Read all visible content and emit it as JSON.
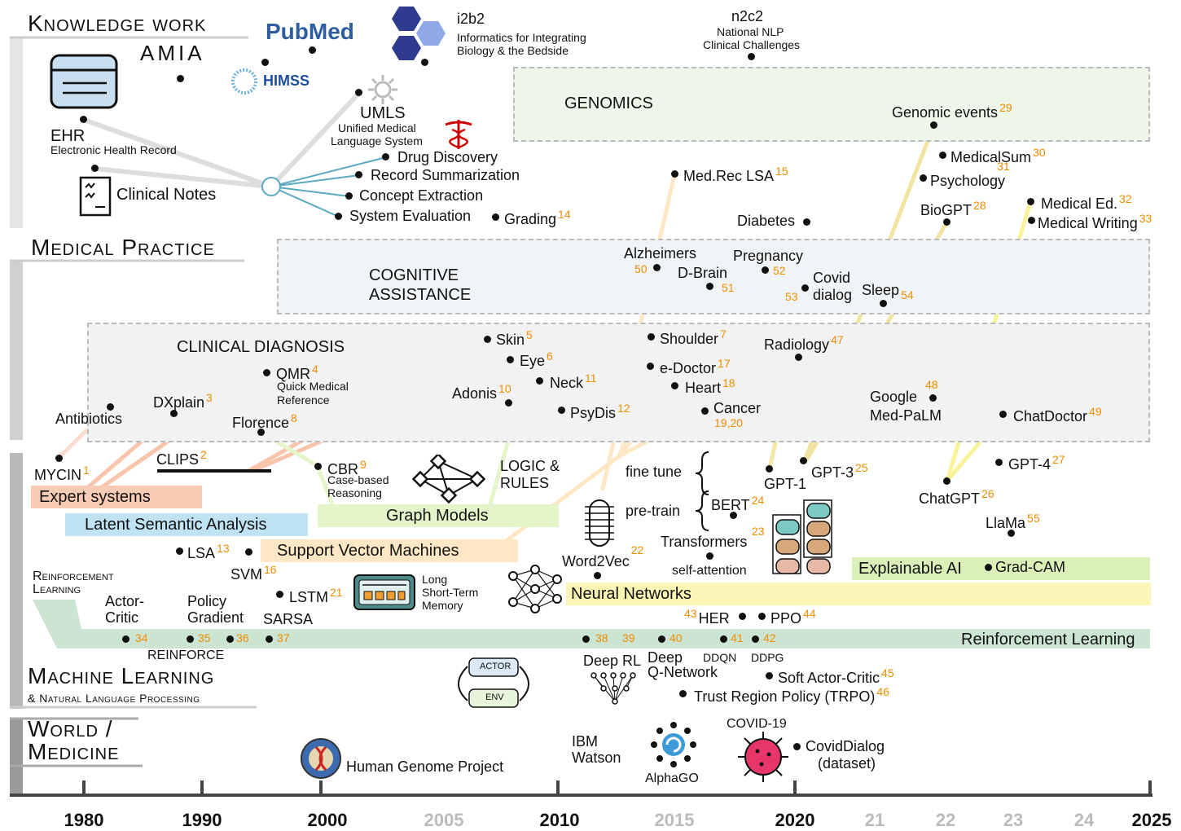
{
  "sections": {
    "knowledge": "Knowledge work",
    "medical": "Medical Practice",
    "ml_title": "Machine Learning",
    "ml_sub": "& Natural Language Processing",
    "world_1": "World /",
    "world_2": "Medicine"
  },
  "logos": {
    "pubmed": "PubMed",
    "amia": "AMIA",
    "himss": "HIMSS",
    "i2b2": "i2b2",
    "i2b2_desc_1": "Informatics for Integrating",
    "i2b2_desc_2": "Biology & the Bedside",
    "n2c2": "n2c2",
    "n2c2_desc_1": "National NLP",
    "n2c2_desc_2": "Clinical Challenges"
  },
  "knowledge": {
    "ehr": "EHR",
    "ehr_desc": "Electronic Health Record",
    "clinical_notes": "Clinical Notes",
    "umls": "UMLS",
    "umls_desc_1": "Unified Medical",
    "umls_desc_2": "Language System",
    "tasks": [
      "Drug Discovery",
      "Record Summarization",
      "Concept Extraction",
      "System Evaluation"
    ],
    "grading": "Grading",
    "grading_ref": "14",
    "genomics": "GENOMICS"
  },
  "medical": {
    "cognitive_1": "COGNITIVE",
    "cognitive_2": "ASSISTANCE",
    "clinical_diagnosis": "CLINICAL DIAGNOSIS"
  },
  "apps": {
    "medrec": "Med.Rec LSA",
    "medrec_ref": "15",
    "genomic_events": "Genomic events",
    "genomic_events_ref": "29",
    "medicalsum": "MedicalSum",
    "medicalsum_ref": "30",
    "psychology": "Psychology",
    "psychology_ref": "31",
    "biogpt": "BioGPT",
    "biogpt_ref": "28",
    "diabetes": "Diabetes",
    "medical_ed": "Medical Ed.",
    "medical_ed_ref": "32",
    "medical_writing": "Medical Writing",
    "medical_writing_ref": "33",
    "alzheimers": "Alzheimers",
    "alzheimers_ref": "50",
    "dbrain": "D-Brain",
    "dbrain_ref": "51",
    "pregnancy": "Pregnancy",
    "pregnancy_ref": "52",
    "covid_dialog_1": "Covid",
    "covid_dialog_2": "dialog",
    "covid_dialog_ref": "53",
    "sleep": "Sleep",
    "sleep_ref": "54",
    "skin": "Skin",
    "skin_ref": "5",
    "shoulder": "Shoulder",
    "shoulder_ref": "7",
    "eye": "Eye",
    "eye_ref": "6",
    "edoctor": "e-Doctor",
    "edoctor_ref": "17",
    "neck": "Neck",
    "neck_ref": "11",
    "heart": "Heart",
    "heart_ref": "18",
    "adonis": "Adonis",
    "adonis_ref": "10",
    "psydis": "PsyDis",
    "psydis_ref": "12",
    "cancer": "Cancer",
    "cancer_ref": "19,20",
    "radiology": "Radiology",
    "radiology_ref": "47",
    "google_1": "Google",
    "google_2": "Med-PaLM",
    "google_ref": "48",
    "chatdoctor": "ChatDoctor",
    "chatdoctor_ref": "49",
    "qmr": "QMR",
    "qmr_ref": "4",
    "qmr_desc_1": "Quick Medical",
    "qmr_desc_2": "Reference",
    "dxplain": "DXplain",
    "dxplain_ref": "3",
    "antibiotics": "Antibiotics",
    "florence": "Florence",
    "florence_ref": "8"
  },
  "ml": {
    "mycin": "MYCIN",
    "mycin_ref": "1",
    "clips": "CLIPS",
    "clips_ref": "2",
    "cbr": "CBR",
    "cbr_ref": "9",
    "cbr_desc_1": "Case-based",
    "cbr_desc_2": "Reasoning",
    "logic_1": "LOGIC &",
    "logic_2": "RULES",
    "fine_tune": "fine tune",
    "pre_train": "pre-train",
    "gpt1": "GPT-1",
    "gpt3": "GPT-3",
    "gpt3_ref": "25",
    "bert": "BERT",
    "bert_ref": "24",
    "chatgpt": "ChatGPT",
    "chatgpt_ref": "26",
    "gpt4": "GPT-4",
    "gpt4_ref": "27",
    "llama": "LlaMa",
    "llama_ref": "55",
    "transformers": "Transformers",
    "transformers_ref": "23",
    "self_attention": "self-attention",
    "word2vec": "Word2Vec",
    "word2vec_ref": "22",
    "lsa": "LSA",
    "lsa_ref": "13",
    "svm": "SVM",
    "svm_ref": "16",
    "lstm": "LSTM",
    "lstm_ref": "21",
    "lstm_desc_1": "Long",
    "lstm_desc_2": "Short-Term",
    "lstm_desc_3": "Memory",
    "rl_title_1": "Reinforcement",
    "rl_title_2": "Learning",
    "actor_critic_1": "Actor-",
    "actor_critic_2": "Critic",
    "policy_gradient_1": "Policy",
    "policy_gradient_2": "Gradient",
    "sarsa": "SARSA",
    "reinforce": "REINFORCE",
    "rl_refs": [
      "34",
      "35",
      "36",
      "37",
      "38",
      "39",
      "40",
      "41",
      "42"
    ],
    "her": "HER",
    "her_ref": "43",
    "ppo": "PPO",
    "ppo_ref": "44",
    "ddqn": "DDQN",
    "ddpg": "DDPG",
    "deep_rl": "Deep RL",
    "deep_q_1": "Deep",
    "deep_q_2": "Q-Network",
    "sac": "Soft Actor-Critic",
    "sac_ref": "45",
    "trpo": "Trust Region Policy (TRPO)",
    "trpo_ref": "46",
    "actor": "ACTOR",
    "env": "ENV",
    "grad_cam": "Grad-CAM"
  },
  "bands": {
    "expert": "Expert systems",
    "lsa": "Latent Semantic Analysis",
    "graph": "Graph Models",
    "svm": "Support Vector Machines",
    "nn": "Neural Networks",
    "xai": "Explainable AI",
    "rl": "Reinforcement Learning"
  },
  "world": {
    "hgp": "Human Genome Project",
    "ibm_1": "IBM",
    "ibm_2": "Watson",
    "alphago": "AlphaGO",
    "covid": "COVID-19",
    "covid_dialog_1": "CovidDialog",
    "covid_dialog_2": "(dataset)"
  },
  "timeline": {
    "years": [
      "1980",
      "1990",
      "2000",
      "2005",
      "2010",
      "2015",
      "2020",
      "21",
      "22",
      "23",
      "24",
      "2025"
    ]
  },
  "colors": {
    "expert": "#f8cbb4",
    "lsa": "#bfe3f2",
    "graph": "#e4f5c9",
    "svm": "#fde7c4",
    "nn": "#fbf6b5",
    "xai": "#d9f0b8",
    "rl": "#cce5d3",
    "ref": "#f08c00",
    "knowledge_line": "#5aa9c0"
  }
}
